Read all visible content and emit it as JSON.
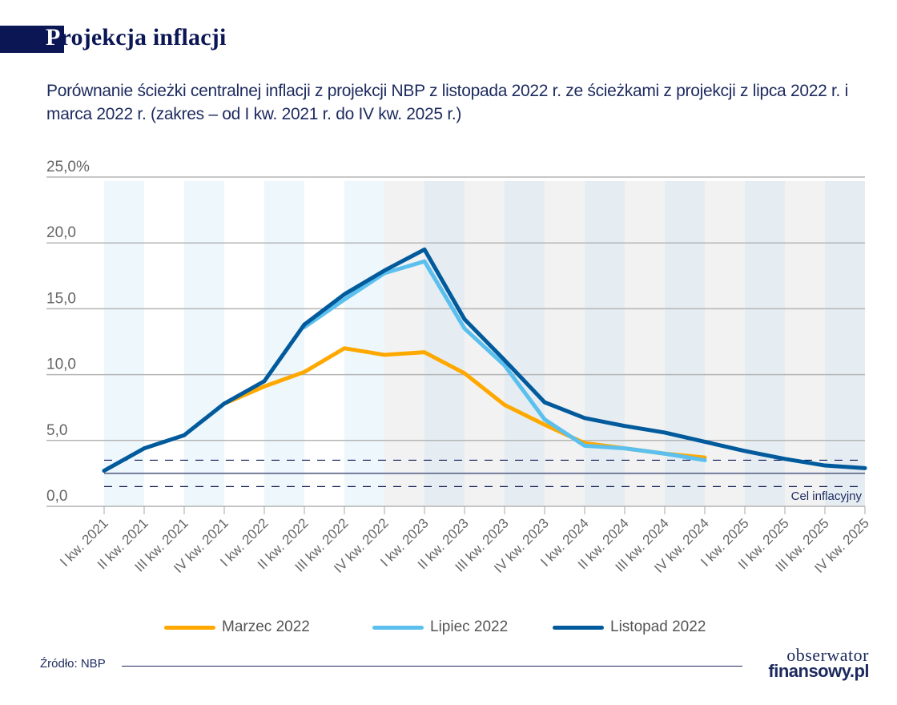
{
  "header": {
    "title": "Projekcja inflacji",
    "subtitle": "Porównanie ścieżki centralnej inflacji z projekcji NBP z listopada 2022 r. ze ścieżkami z projekcji z lipca 2022 r. i marca 2022 r. (zakres – od I kw. 2021 r. do IV kw. 2025 r.)"
  },
  "footer": {
    "source": "Źródło: NBP",
    "logo_line1": "obserwator",
    "logo_line2": "finansowy.pl"
  },
  "colors": {
    "marzec": "#FFA800",
    "lipiec": "#5BC0EE",
    "listopad": "#005A9C",
    "brand": "#0B1655"
  },
  "chart_data": {
    "type": "line",
    "title": "Projekcja inflacji",
    "xlabel": "",
    "ylabel": "",
    "ylim": [
      0,
      25
    ],
    "yticks": [
      0,
      5,
      10,
      15,
      20,
      25
    ],
    "ytick_labels": [
      "0,0",
      "5,0",
      "10,0",
      "15,0",
      "20,0",
      "25,0%"
    ],
    "grid": true,
    "legend_position": "bottom",
    "categories": [
      "I kw. 2021",
      "II kw. 2021",
      "III kw. 2021",
      "IV kw. 2021",
      "I kw. 2022",
      "II kw. 2022",
      "III kw. 2022",
      "IV kw. 2022",
      "I kw. 2023",
      "II kw. 2023",
      "III kw. 2023",
      "IV kw. 2023",
      "I kw. 2024",
      "II kw. 2024",
      "III kw. 2024",
      "IV kw. 2024",
      "I kw. 2025",
      "II kw. 2025",
      "III kw. 2025",
      "IV kw. 2025"
    ],
    "series": [
      {
        "name": "Marzec 2022",
        "color_key": "marzec",
        "values": [
          null,
          null,
          null,
          7.8,
          9.1,
          10.2,
          12.0,
          11.5,
          11.7,
          10.1,
          7.7,
          6.2,
          4.8,
          4.4,
          4.0,
          3.7,
          null,
          null,
          null,
          null
        ]
      },
      {
        "name": "Lipiec 2022",
        "color_key": "lipiec",
        "values": [
          null,
          null,
          null,
          null,
          null,
          13.6,
          15.7,
          17.7,
          18.6,
          13.5,
          10.7,
          6.6,
          4.6,
          4.4,
          4.0,
          3.5,
          null,
          null,
          null,
          null
        ]
      },
      {
        "name": "Listopad 2022",
        "color_key": "listopad",
        "values": [
          2.7,
          4.4,
          5.4,
          7.8,
          9.5,
          13.8,
          16.1,
          17.9,
          19.5,
          14.2,
          11.1,
          7.9,
          6.7,
          6.1,
          5.6,
          4.9,
          4.2,
          3.6,
          3.1,
          2.9
        ]
      }
    ],
    "inflation_target": {
      "label": "Cel inflacyjny",
      "center": 2.5,
      "lower": 1.5,
      "upper": 3.5
    },
    "projection_start_category": "IV kw. 2022"
  }
}
